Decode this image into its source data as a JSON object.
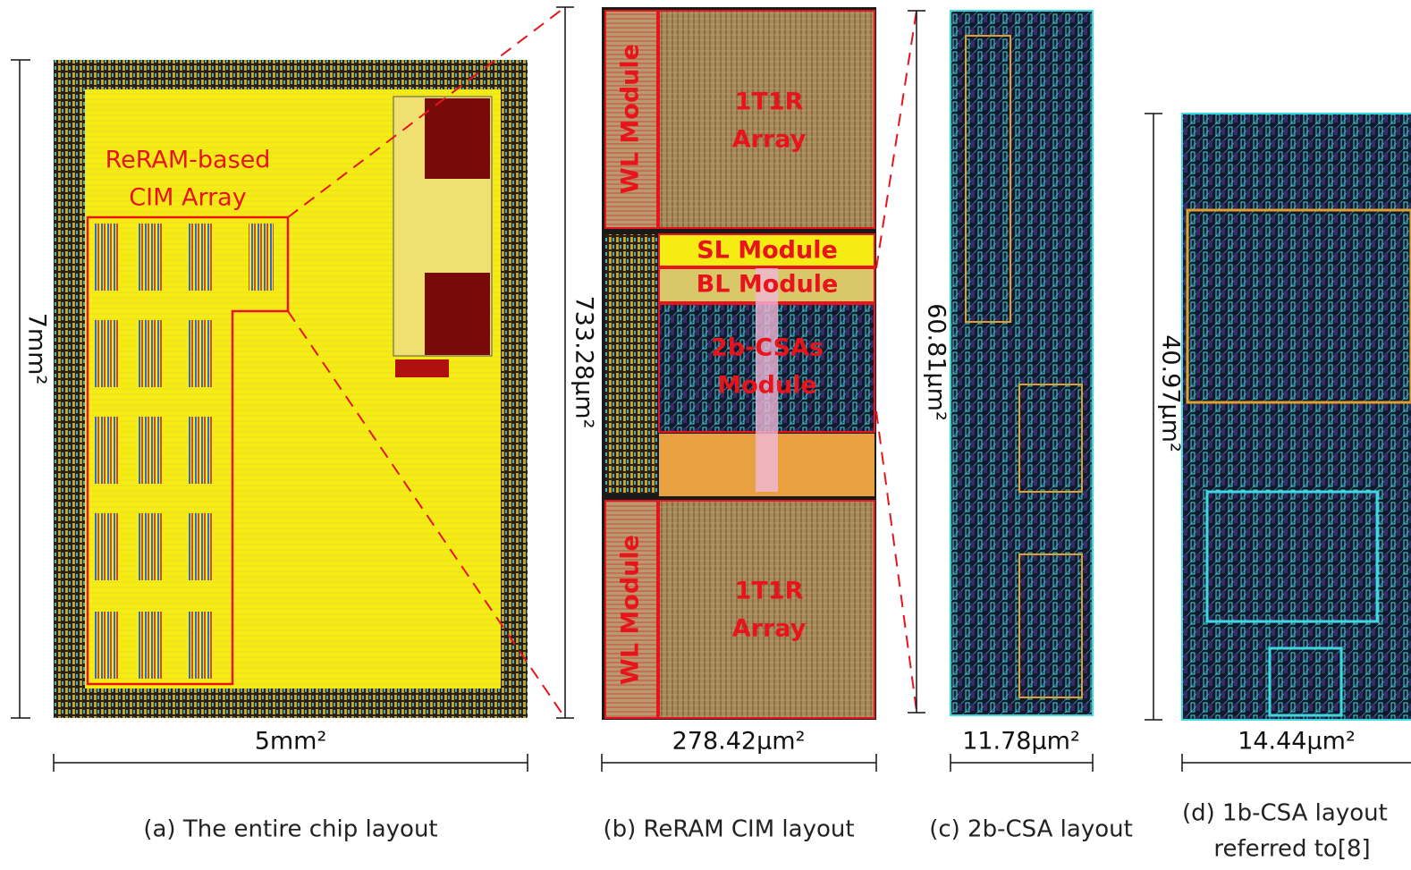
{
  "chip": {
    "region_label": [
      "ReRAM-based",
      "CIM Array"
    ],
    "height": "7mm²",
    "width": "5mm²",
    "caption": "(a)  The entire chip layout"
  },
  "cim": {
    "height": "733.28μm²",
    "width": "278.42μm²",
    "modules": {
      "wl_top": "WL Module",
      "array_top": [
        "1T1R",
        "Array"
      ],
      "sl": "SL Module",
      "bl": "BL Module",
      "csa": [
        "2b-CSAs",
        "Module"
      ],
      "wl_bottom": "WL Module",
      "array_bottom": [
        "1T1R",
        "Array"
      ]
    },
    "caption": "(b) ReRAM CIM layout"
  },
  "csa2b": {
    "height": "60.81μm²",
    "width": "11.78μm²",
    "caption": "(c) 2b-CSA layout"
  },
  "csa1b": {
    "height": "40.97μm²",
    "width": "14.44μm²",
    "caption": [
      "(d) 1b-CSA layout",
      "referred to[8]"
    ]
  }
}
